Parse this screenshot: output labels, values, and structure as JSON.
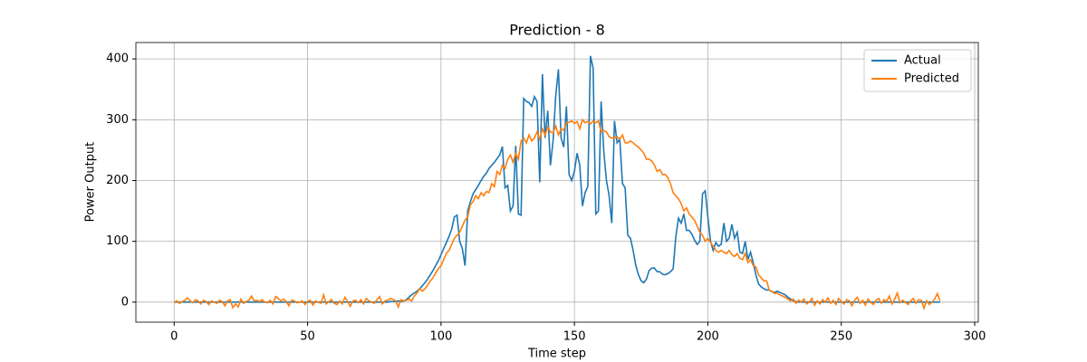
{
  "chart_data": {
    "type": "line",
    "title": "Prediction - 8",
    "xlabel": "Time step",
    "ylabel": "Power Output",
    "x": [
      0,
      1,
      2,
      3,
      4,
      5,
      6,
      7,
      8,
      9,
      10,
      11,
      12,
      13,
      14,
      15,
      16,
      17,
      18,
      19,
      20,
      21,
      22,
      23,
      24,
      25,
      26,
      27,
      28,
      29,
      30,
      31,
      32,
      33,
      34,
      35,
      36,
      37,
      38,
      39,
      40,
      41,
      42,
      43,
      44,
      45,
      46,
      47,
      48,
      49,
      50,
      51,
      52,
      53,
      54,
      55,
      56,
      57,
      58,
      59,
      60,
      61,
      62,
      63,
      64,
      65,
      66,
      67,
      68,
      69,
      70,
      71,
      72,
      73,
      74,
      75,
      76,
      77,
      78,
      79,
      80,
      81,
      82,
      83,
      84,
      85,
      86,
      87,
      88,
      89,
      90,
      91,
      92,
      93,
      94,
      95,
      96,
      97,
      98,
      99,
      100,
      101,
      102,
      103,
      104,
      105,
      106,
      107,
      108,
      109,
      110,
      111,
      112,
      113,
      114,
      115,
      116,
      117,
      118,
      119,
      120,
      121,
      122,
      123,
      124,
      125,
      126,
      127,
      128,
      129,
      130,
      131,
      132,
      133,
      134,
      135,
      136,
      137,
      138,
      139,
      140,
      141,
      142,
      143,
      144,
      145,
      146,
      147,
      148,
      149,
      150,
      151,
      152,
      153,
      154,
      155,
      156,
      157,
      158,
      159,
      160,
      161,
      162,
      163,
      164,
      165,
      166,
      167,
      168,
      169,
      170,
      171,
      172,
      173,
      174,
      175,
      176,
      177,
      178,
      179,
      180,
      181,
      182,
      183,
      184,
      185,
      186,
      187,
      188,
      189,
      190,
      191,
      192,
      193,
      194,
      195,
      196,
      197,
      198,
      199,
      200,
      201,
      202,
      203,
      204,
      205,
      206,
      207,
      208,
      209,
      210,
      211,
      212,
      213,
      214,
      215,
      216,
      217,
      218,
      219,
      220,
      221,
      222,
      223,
      224,
      225,
      226,
      227,
      228,
      229,
      230,
      231,
      232,
      233,
      234,
      235,
      236,
      237,
      238,
      239,
      240,
      241,
      242,
      243,
      244,
      245,
      246,
      247,
      248,
      249,
      250,
      251,
      252,
      253,
      254,
      255,
      256,
      257,
      258,
      259,
      260,
      261,
      262,
      263,
      264,
      265,
      266,
      267,
      268,
      269,
      270,
      271,
      272,
      273,
      274,
      275,
      276,
      277,
      278,
      279,
      280,
      281,
      282,
      283,
      284,
      285,
      286,
      287
    ],
    "series": [
      {
        "name": "Actual",
        "color": "#1f77b4",
        "values": [
          0,
          0,
          0,
          0,
          0,
          0,
          0,
          0,
          0,
          0,
          0,
          0,
          0,
          0,
          0,
          0,
          0,
          0,
          0,
          0,
          0,
          0,
          0,
          0,
          0,
          0,
          0,
          0,
          0,
          0,
          0,
          0,
          0,
          0,
          0,
          0,
          0,
          0,
          0,
          0,
          0,
          0,
          0,
          0,
          0,
          0,
          0,
          0,
          0,
          0,
          0,
          0,
          0,
          0,
          0,
          0,
          0,
          0,
          0,
          0,
          0,
          0,
          0,
          0,
          0,
          0,
          0,
          0,
          0,
          0,
          0,
          0,
          0,
          0,
          0,
          0,
          0,
          0,
          0,
          0,
          0,
          1,
          1,
          1,
          2,
          1,
          2,
          4,
          8,
          12,
          15,
          18,
          22,
          27,
          32,
          38,
          45,
          52,
          60,
          68,
          78,
          88,
          98,
          108,
          120,
          140,
          143,
          100,
          88,
          60,
          150,
          165,
          178,
          185,
          192,
          200,
          207,
          212,
          220,
          225,
          230,
          236,
          242,
          256,
          188,
          192,
          150,
          158,
          257,
          145,
          143,
          335,
          330,
          328,
          322,
          338,
          330,
          197,
          375,
          270,
          315,
          225,
          265,
          340,
          383,
          270,
          255,
          322,
          210,
          200,
          215,
          245,
          225,
          158,
          180,
          190,
          405,
          385,
          145,
          150,
          330,
          248,
          200,
          175,
          130,
          298,
          262,
          268,
          195,
          188,
          110,
          105,
          85,
          60,
          45,
          35,
          32,
          38,
          52,
          56,
          56,
          50,
          50,
          46,
          45,
          47,
          50,
          55,
          108,
          138,
          130,
          145,
          118,
          118,
          112,
          102,
          95,
          100,
          178,
          183,
          140,
          100,
          85,
          98,
          92,
          95,
          130,
          100,
          105,
          128,
          105,
          115,
          82,
          80,
          100,
          70,
          82,
          65,
          45,
          30,
          25,
          22,
          20,
          20,
          17,
          16,
          18,
          16,
          14,
          12,
          8,
          5,
          2,
          1,
          0,
          0,
          0,
          0,
          0,
          0,
          0,
          0,
          0,
          0,
          0,
          0,
          0,
          0,
          0,
          0,
          0,
          0,
          0,
          0,
          0,
          0,
          0,
          0,
          0,
          0,
          0,
          0,
          0,
          0,
          0,
          0,
          0,
          0,
          0,
          0,
          0,
          0,
          0,
          0,
          0,
          0,
          0,
          0,
          0,
          0,
          0,
          0,
          0,
          0,
          0,
          0,
          0,
          0
        ]
      },
      {
        "name": "Predicted",
        "color": "#ff7f0e",
        "values": [
          0,
          2,
          -2,
          1,
          3,
          7,
          2,
          -1,
          4,
          2,
          -3,
          3,
          1,
          -4,
          2,
          0,
          -2,
          3,
          1,
          -6,
          2,
          4,
          -9,
          -3,
          -8,
          5,
          -2,
          1,
          3,
          10,
          2,
          3,
          1,
          4,
          0,
          -1,
          3,
          -3,
          9,
          6,
          2,
          5,
          1,
          -6,
          3,
          2,
          -1,
          0,
          2,
          -4,
          1,
          3,
          -5,
          2,
          0,
          -2,
          12,
          -3,
          1,
          4,
          -2,
          -4,
          2,
          -3,
          8,
          1,
          -7,
          2,
          3,
          -1,
          4,
          -3,
          6,
          2,
          0,
          -2,
          4,
          9,
          -3,
          2,
          3,
          6,
          5,
          2,
          -8,
          4,
          2,
          3,
          5,
          2,
          10,
          15,
          22,
          18,
          22,
          28,
          35,
          40,
          48,
          55,
          60,
          70,
          80,
          85,
          95,
          105,
          110,
          115,
          125,
          135,
          140,
          160,
          165,
          175,
          170,
          180,
          175,
          182,
          180,
          195,
          190,
          215,
          210,
          225,
          220,
          235,
          242,
          230,
          245,
          235,
          265,
          270,
          262,
          275,
          265,
          270,
          280,
          268,
          285,
          275,
          288,
          280,
          278,
          290,
          275,
          285,
          283,
          295,
          296,
          298,
          294,
          297,
          285,
          300,
          295,
          297,
          293,
          298,
          295,
          298,
          280,
          282,
          280,
          272,
          270,
          270,
          272,
          268,
          275,
          262,
          262,
          265,
          262,
          258,
          255,
          250,
          245,
          235,
          235,
          232,
          225,
          215,
          218,
          210,
          210,
          205,
          195,
          180,
          175,
          170,
          162,
          150,
          155,
          145,
          140,
          135,
          125,
          115,
          110,
          100,
          105,
          98,
          92,
          85,
          82,
          85,
          82,
          80,
          85,
          78,
          75,
          80,
          72,
          70,
          80,
          65,
          70,
          60,
          58,
          45,
          40,
          35,
          35,
          20,
          18,
          14,
          15,
          12,
          10,
          8,
          5,
          2,
          5,
          -2,
          3,
          0,
          5,
          -3,
          0,
          6,
          -5,
          2,
          -3,
          4,
          0,
          7,
          -2,
          3,
          -4,
          6,
          1,
          -3,
          4,
          2,
          -6,
          3,
          8,
          -2,
          3,
          -5,
          5,
          0,
          -4,
          3,
          6,
          -2,
          4,
          1,
          10,
          -3,
          5,
          15,
          -1,
          3,
          0,
          -4,
          2,
          6,
          -2,
          4,
          3,
          -10,
          2,
          -4,
          0,
          5,
          14,
          2
        ]
      }
    ],
    "xlim": [
      -14.35,
      301.35
    ],
    "ylim": [
      -33,
      427
    ],
    "xticks": [
      0,
      50,
      100,
      150,
      200,
      250,
      300
    ],
    "yticks": [
      0,
      100,
      200,
      300,
      400
    ],
    "grid": true,
    "legend": "upper right"
  }
}
